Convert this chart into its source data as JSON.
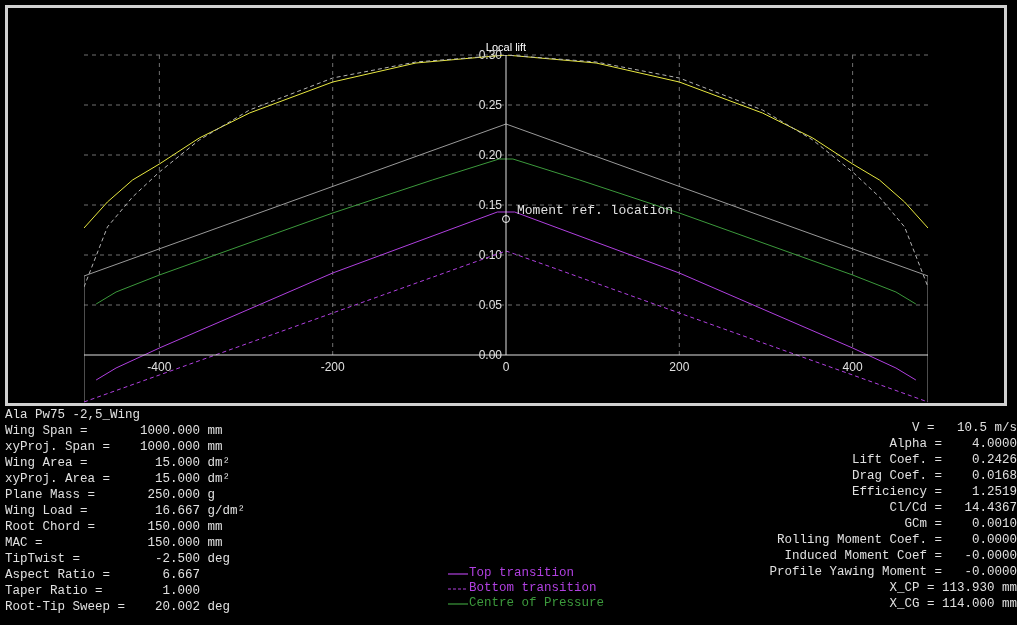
{
  "chart_data": {
    "type": "line",
    "ylabel": "Local lift",
    "xlim": [
      -487,
      487
    ],
    "xticks": [
      -400,
      -200,
      0,
      200,
      400
    ],
    "ylim": [
      -0.05,
      0.3
    ],
    "yticks": [
      {
        "value": 0,
        "label": "0.00"
      },
      {
        "value": 0.05,
        "label": "0.05"
      },
      {
        "value": 0.1,
        "label": "0.10"
      },
      {
        "value": 0.15,
        "label": "0.15"
      },
      {
        "value": 0.2,
        "label": "0.20"
      },
      {
        "value": 0.25,
        "label": "0.25"
      },
      {
        "value": 0.3,
        "label": "0.30"
      }
    ],
    "grid": true,
    "legend": "bottom",
    "marker": "none",
    "series": [
      {
        "color": "#e8e840",
        "x": [
          -487,
          -460,
          -431,
          -400,
          -354,
          -296,
          -200,
          -104,
          0,
          104,
          200,
          296,
          354,
          400,
          431,
          460,
          487
        ],
        "values": [
          0.127,
          0.153,
          0.175,
          0.191,
          0.217,
          0.242,
          0.273,
          0.292,
          0.3,
          0.292,
          0.273,
          0.242,
          0.217,
          0.191,
          0.175,
          0.153,
          0.127
        ]
      },
      {
        "color": "#b4b4b4",
        "line_style": "dashed",
        "x": [
          -487,
          -460,
          -431,
          -400,
          -354,
          -296,
          -200,
          -104,
          0,
          104,
          200,
          296,
          354,
          400,
          431,
          460,
          487
        ],
        "values": [
          0.068,
          0.128,
          0.158,
          0.183,
          0.215,
          0.245,
          0.277,
          0.293,
          0.3,
          0.293,
          0.277,
          0.245,
          0.215,
          0.183,
          0.158,
          0.128,
          0.068
        ]
      },
      {
        "color": "#9a9a9a",
        "x": [
          -487,
          -487,
          0,
          487,
          487
        ],
        "values": [
          -0.047,
          0.079,
          0.231,
          0.079,
          -0.047
        ]
      },
      {
        "name": "Top transition",
        "color": "#b040e0",
        "x": [
          -473,
          -450,
          -400,
          -200,
          -10,
          0,
          10,
          200,
          400,
          450,
          473
        ],
        "values": [
          -0.025,
          -0.013,
          0.007,
          0.082,
          0.143,
          0.143,
          0.143,
          0.082,
          0.007,
          -0.013,
          -0.025
        ]
      },
      {
        "name": "Bottom transition",
        "color": "#b040e0",
        "line_style": "dashed",
        "x": [
          -487,
          -400,
          -200,
          -10,
          0,
          10,
          200,
          400,
          487
        ],
        "values": [
          -0.047,
          -0.02,
          0.042,
          0.101,
          0.104,
          0.101,
          0.042,
          -0.02,
          -0.047
        ]
      },
      {
        "name": "Centre of Pressure",
        "color": "#3c9a3c",
        "x": [
          -473,
          -450,
          -400,
          -200,
          -85,
          -8,
          0,
          8,
          85,
          200,
          400,
          450,
          473
        ],
        "values": [
          0.051,
          0.063,
          0.08,
          0.142,
          0.175,
          0.196,
          0.196,
          0.196,
          0.175,
          0.142,
          0.08,
          0.063,
          0.051
        ]
      },
      {
        "type": "scatter",
        "marker": "circle",
        "color": "#ffffff",
        "x": [
          0
        ],
        "values": [
          0.136
        ]
      }
    ],
    "annotations": [
      {
        "text": "Moment ref. location",
        "x": 0,
        "y": 0.136
      },
      "Ala Pw75 -2,5_Wing",
      "Wing Span =       1000.000 mm",
      "xyProj. Span =    1000.000 mm",
      "Wing Area =         15.000 dm²",
      "xyProj. Area =      15.000 dm²",
      "Plane Mass =       250.000 g",
      "Wing Load =         16.667 g/dm²",
      "Root Chord =       150.000 mm",
      "MAC =              150.000 mm",
      "TipTwist =          -2.500 deg",
      "Aspect Ratio =       6.667",
      "Taper Ratio =        1.000",
      "Root-Tip Sweep =    20.002 deg",
      "V =   10.5 m/s",
      "Alpha =    4.0000",
      "Lift Coef. =    0.2426",
      "Drag Coef. =    0.0168",
      "Efficiency =    1.2519",
      "Cl/Cd =   14.4367",
      "GCm =    0.0010",
      "Rolling Moment Coef. =    0.0000",
      "Induced Moment Coef =   -0.0000",
      "Profile Yawing Moment =   -0.0000",
      "X_CP = 113.930 mm",
      "X_CG = 114.000 mm"
    ]
  }
}
